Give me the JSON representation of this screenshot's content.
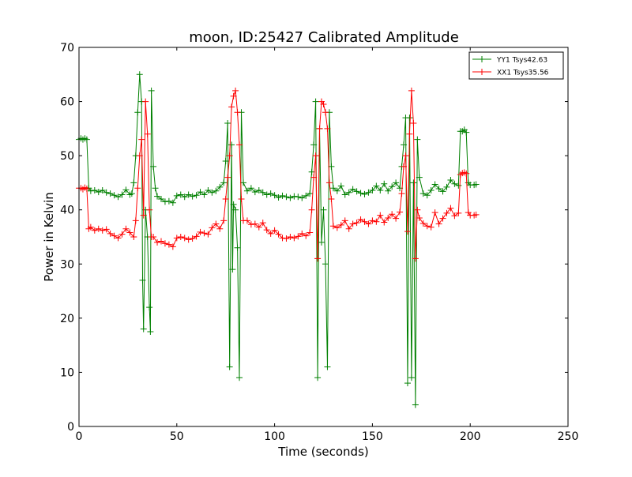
{
  "chart_data": {
    "type": "line",
    "title": "moon, ID:25427 Calibrated Amplitude",
    "xlabel": "Time (seconds)",
    "ylabel": "Power in Kelvin",
    "xlim": [
      0,
      250
    ],
    "ylim": [
      0,
      70
    ],
    "xticks": [
      0,
      50,
      100,
      150,
      200,
      250
    ],
    "yticks": [
      0,
      10,
      20,
      30,
      40,
      50,
      60,
      70
    ],
    "grid": false,
    "legend_position": "top-right",
    "marker": "plus",
    "series": [
      {
        "name": "YY1 Tsys42.63",
        "color": "#008000",
        "points": [
          [
            0,
            53
          ],
          [
            1,
            53.2
          ],
          [
            2,
            53
          ],
          [
            3,
            53.2
          ],
          [
            4,
            53
          ],
          [
            5,
            44
          ],
          [
            6,
            43.5
          ],
          [
            8,
            43.6
          ],
          [
            10,
            43.3
          ],
          [
            12,
            43.6
          ],
          [
            14,
            43.2
          ],
          [
            16,
            43
          ],
          [
            18,
            42.7
          ],
          [
            20,
            42.4
          ],
          [
            22,
            42.8
          ],
          [
            24,
            43.7
          ],
          [
            26,
            42.8
          ],
          [
            27,
            43
          ],
          [
            28,
            45
          ],
          [
            29,
            50
          ],
          [
            30,
            58
          ],
          [
            31,
            65
          ],
          [
            32,
            60
          ],
          [
            32.5,
            27
          ],
          [
            33,
            18
          ],
          [
            34,
            40
          ],
          [
            35,
            35
          ],
          [
            36,
            22
          ],
          [
            36.5,
            17.5
          ],
          [
            37,
            62
          ],
          [
            38,
            48
          ],
          [
            39,
            44
          ],
          [
            40,
            42.5
          ],
          [
            42,
            42
          ],
          [
            44,
            41.5
          ],
          [
            46,
            41.6
          ],
          [
            48,
            41.3
          ],
          [
            50,
            42.6
          ],
          [
            52,
            42.8
          ],
          [
            54,
            42.4
          ],
          [
            56,
            42.8
          ],
          [
            58,
            42.5
          ],
          [
            60,
            42.7
          ],
          [
            62,
            43.3
          ],
          [
            64,
            42.8
          ],
          [
            66,
            43.6
          ],
          [
            68,
            43.2
          ],
          [
            70,
            43.5
          ],
          [
            72,
            44.2
          ],
          [
            74,
            45
          ],
          [
            75,
            49
          ],
          [
            76,
            56
          ],
          [
            77,
            11
          ],
          [
            78,
            52
          ],
          [
            78.5,
            29
          ],
          [
            79,
            41
          ],
          [
            80,
            40
          ],
          [
            81,
            33
          ],
          [
            82,
            9
          ],
          [
            83,
            58
          ],
          [
            84,
            45
          ],
          [
            86,
            43.5
          ],
          [
            88,
            44
          ],
          [
            90,
            43.3
          ],
          [
            92,
            43.6
          ],
          [
            94,
            43.2
          ],
          [
            96,
            42.8
          ],
          [
            98,
            43
          ],
          [
            100,
            42.7
          ],
          [
            102,
            42.3
          ],
          [
            104,
            42.6
          ],
          [
            106,
            42.4
          ],
          [
            108,
            42.2
          ],
          [
            110,
            42.5
          ],
          [
            112,
            42.4
          ],
          [
            114,
            42.2
          ],
          [
            116,
            42.6
          ],
          [
            118,
            43
          ],
          [
            119,
            47
          ],
          [
            120,
            52
          ],
          [
            121,
            60
          ],
          [
            122,
            9
          ],
          [
            123,
            55
          ],
          [
            124,
            34
          ],
          [
            125,
            40
          ],
          [
            126,
            30
          ],
          [
            127,
            11
          ],
          [
            128,
            58
          ],
          [
            129,
            48
          ],
          [
            130,
            44
          ],
          [
            132,
            43.5
          ],
          [
            134,
            44.4
          ],
          [
            136,
            42.8
          ],
          [
            138,
            43.2
          ],
          [
            140,
            43.8
          ],
          [
            142,
            43.4
          ],
          [
            144,
            43.1
          ],
          [
            146,
            42.9
          ],
          [
            148,
            43.2
          ],
          [
            150,
            43.6
          ],
          [
            152,
            44.4
          ],
          [
            154,
            43.6
          ],
          [
            156,
            44.8
          ],
          [
            158,
            43.5
          ],
          [
            160,
            44.3
          ],
          [
            162,
            45
          ],
          [
            164,
            44
          ],
          [
            165,
            48
          ],
          [
            166,
            52
          ],
          [
            167,
            57
          ],
          [
            168,
            8
          ],
          [
            169,
            57
          ],
          [
            170,
            9
          ],
          [
            171,
            45
          ],
          [
            172,
            4
          ],
          [
            173,
            53
          ],
          [
            174,
            46
          ],
          [
            176,
            43
          ],
          [
            178,
            42.7
          ],
          [
            180,
            43.6
          ],
          [
            182,
            44.7
          ],
          [
            184,
            43.9
          ],
          [
            186,
            43.4
          ],
          [
            188,
            44.2
          ],
          [
            190,
            45.5
          ],
          [
            192,
            44.8
          ],
          [
            194,
            44.5
          ],
          [
            195,
            54.5
          ],
          [
            196,
            54.5
          ],
          [
            197,
            54.8
          ],
          [
            198,
            54.3
          ],
          [
            199,
            45
          ],
          [
            200,
            44.6
          ],
          [
            202,
            44.6
          ],
          [
            203,
            44.7
          ]
        ]
      },
      {
        "name": "XX1 Tsys35.56",
        "color": "#ff0000",
        "points": [
          [
            0,
            44
          ],
          [
            1,
            44
          ],
          [
            2,
            43.8
          ],
          [
            3,
            44.1
          ],
          [
            4,
            43.9
          ],
          [
            5,
            36.5
          ],
          [
            6,
            36.8
          ],
          [
            8,
            36.2
          ],
          [
            10,
            36.5
          ],
          [
            12,
            36.2
          ],
          [
            14,
            36.4
          ],
          [
            16,
            35.6
          ],
          [
            18,
            35.2
          ],
          [
            20,
            34.8
          ],
          [
            22,
            35.5
          ],
          [
            24,
            36.5
          ],
          [
            26,
            35.8
          ],
          [
            28,
            35
          ],
          [
            29,
            38
          ],
          [
            30,
            44
          ],
          [
            31,
            50
          ],
          [
            32,
            53
          ],
          [
            33,
            39
          ],
          [
            34,
            60
          ],
          [
            35,
            54
          ],
          [
            36,
            40
          ],
          [
            37,
            35
          ],
          [
            38,
            35
          ],
          [
            40,
            34
          ],
          [
            42,
            34.2
          ],
          [
            44,
            33.8
          ],
          [
            46,
            33.6
          ],
          [
            48,
            33.2
          ],
          [
            50,
            34.8
          ],
          [
            52,
            35
          ],
          [
            54,
            34.8
          ],
          [
            56,
            34.5
          ],
          [
            58,
            34.7
          ],
          [
            60,
            35.1
          ],
          [
            62,
            35.9
          ],
          [
            64,
            35.7
          ],
          [
            66,
            35.5
          ],
          [
            68,
            36.7
          ],
          [
            70,
            37.4
          ],
          [
            72,
            36.5
          ],
          [
            74,
            38
          ],
          [
            75,
            42
          ],
          [
            76,
            46
          ],
          [
            77,
            50
          ],
          [
            78,
            59
          ],
          [
            79,
            61
          ],
          [
            80,
            62
          ],
          [
            81,
            58
          ],
          [
            82,
            52
          ],
          [
            83,
            42
          ],
          [
            84,
            38
          ],
          [
            86,
            38
          ],
          [
            88,
            37.3
          ],
          [
            90,
            37.4
          ],
          [
            92,
            36.8
          ],
          [
            94,
            37.6
          ],
          [
            96,
            36.3
          ],
          [
            98,
            35.6
          ],
          [
            100,
            36.2
          ],
          [
            102,
            35.5
          ],
          [
            104,
            34.8
          ],
          [
            106,
            34.7
          ],
          [
            108,
            35
          ],
          [
            110,
            34.8
          ],
          [
            112,
            35.1
          ],
          [
            114,
            35.6
          ],
          [
            116,
            35.2
          ],
          [
            118,
            35.8
          ],
          [
            119,
            40
          ],
          [
            120,
            46
          ],
          [
            121,
            50
          ],
          [
            122,
            31
          ],
          [
            123,
            55
          ],
          [
            124,
            60
          ],
          [
            125,
            59.5
          ],
          [
            126,
            58
          ],
          [
            127,
            55
          ],
          [
            128,
            45
          ],
          [
            129,
            42
          ],
          [
            130,
            37
          ],
          [
            132,
            36.7
          ],
          [
            134,
            37.2
          ],
          [
            136,
            38
          ],
          [
            138,
            36.5
          ],
          [
            140,
            37.4
          ],
          [
            142,
            37.6
          ],
          [
            144,
            38.2
          ],
          [
            146,
            37.8
          ],
          [
            148,
            37.4
          ],
          [
            150,
            38
          ],
          [
            152,
            37.8
          ],
          [
            154,
            39
          ],
          [
            156,
            37.7
          ],
          [
            158,
            38.5
          ],
          [
            160,
            39.2
          ],
          [
            162,
            38.4
          ],
          [
            164,
            39.6
          ],
          [
            165,
            43
          ],
          [
            166,
            48
          ],
          [
            167,
            50
          ],
          [
            168,
            36
          ],
          [
            169,
            54
          ],
          [
            170,
            62
          ],
          [
            171,
            56
          ],
          [
            172,
            31
          ],
          [
            173,
            40
          ],
          [
            174,
            38.5
          ],
          [
            176,
            37.5
          ],
          [
            178,
            37
          ],
          [
            180,
            36.8
          ],
          [
            182,
            39.5
          ],
          [
            184,
            37.4
          ],
          [
            186,
            38.4
          ],
          [
            188,
            39.4
          ],
          [
            190,
            40.3
          ],
          [
            192,
            38.9
          ],
          [
            194,
            39.4
          ],
          [
            195,
            46.5
          ],
          [
            196,
            46.8
          ],
          [
            197,
            46.9
          ],
          [
            198,
            46.7
          ],
          [
            199,
            39.5
          ],
          [
            200,
            39
          ],
          [
            202,
            39
          ],
          [
            203,
            39.1
          ]
        ]
      }
    ]
  }
}
